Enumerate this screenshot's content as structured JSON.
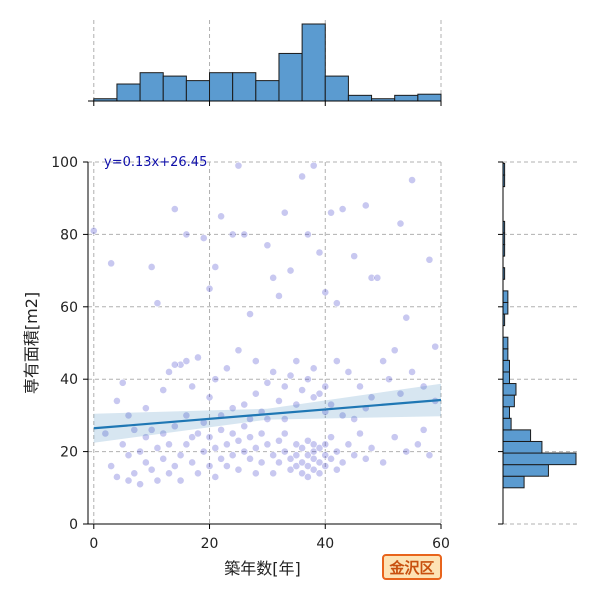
{
  "chart_data": {
    "type": "scatter",
    "xlabel": "築年数[年]",
    "ylabel": "専有面積[m2]",
    "xlim": [
      -1,
      60
    ],
    "ylim": [
      0,
      100
    ],
    "x_ticks": [
      0,
      20,
      40,
      60
    ],
    "y_ticks": [
      0,
      20,
      40,
      60,
      80,
      100
    ],
    "grid": true,
    "annotation": "y=0.13x+26.45",
    "regression": {
      "slope": 0.13,
      "intercept": 26.45
    },
    "badge": "金沢区",
    "colors": {
      "points": "#3a3ac8",
      "regression": "#1f77b4",
      "histogram": "#5b9bd0"
    },
    "points": [
      [
        0,
        81
      ],
      [
        3,
        72
      ],
      [
        10,
        71
      ],
      [
        11,
        61
      ],
      [
        5,
        39
      ],
      [
        12,
        37
      ],
      [
        14,
        87
      ],
      [
        16,
        80
      ],
      [
        19,
        79
      ],
      [
        20,
        65
      ],
      [
        21,
        71
      ],
      [
        22,
        85
      ],
      [
        24,
        80
      ],
      [
        25,
        99
      ],
      [
        26,
        80
      ],
      [
        27,
        58
      ],
      [
        28,
        45
      ],
      [
        30,
        77
      ],
      [
        31,
        68
      ],
      [
        32,
        63
      ],
      [
        33,
        86
      ],
      [
        34,
        70
      ],
      [
        36,
        96
      ],
      [
        37,
        80
      ],
      [
        38,
        99
      ],
      [
        39,
        75
      ],
      [
        40,
        64
      ],
      [
        41,
        86
      ],
      [
        42,
        61
      ],
      [
        43,
        87
      ],
      [
        45,
        74
      ],
      [
        47,
        88
      ],
      [
        48,
        68
      ],
      [
        49,
        68
      ],
      [
        52,
        48
      ],
      [
        53,
        83
      ],
      [
        54,
        57
      ],
      [
        55,
        95
      ],
      [
        58,
        73
      ],
      [
        59,
        49
      ],
      [
        2,
        25
      ],
      [
        3,
        16
      ],
      [
        4,
        13
      ],
      [
        5,
        22
      ],
      [
        6,
        19
      ],
      [
        6,
        12
      ],
      [
        7,
        26
      ],
      [
        7,
        14
      ],
      [
        8,
        20
      ],
      [
        8,
        11
      ],
      [
        9,
        17
      ],
      [
        9,
        24
      ],
      [
        10,
        15
      ],
      [
        10,
        26
      ],
      [
        11,
        12
      ],
      [
        11,
        21
      ],
      [
        12,
        18
      ],
      [
        12,
        25
      ],
      [
        13,
        14
      ],
      [
        13,
        22
      ],
      [
        14,
        16
      ],
      [
        14,
        27
      ],
      [
        15,
        19
      ],
      [
        15,
        12
      ],
      [
        16,
        22
      ],
      [
        16,
        30
      ],
      [
        17,
        17
      ],
      [
        17,
        24
      ],
      [
        18,
        14
      ],
      [
        18,
        25
      ],
      [
        19,
        20
      ],
      [
        19,
        28
      ],
      [
        20,
        16
      ],
      [
        20,
        24
      ],
      [
        21,
        21
      ],
      [
        21,
        13
      ],
      [
        22,
        26
      ],
      [
        22,
        18
      ],
      [
        23,
        22
      ],
      [
        23,
        16
      ],
      [
        24,
        25
      ],
      [
        24,
        19
      ],
      [
        25,
        23
      ],
      [
        25,
        15
      ],
      [
        26,
        20
      ],
      [
        26,
        27
      ],
      [
        27,
        18
      ],
      [
        27,
        24
      ],
      [
        28,
        21
      ],
      [
        28,
        14
      ],
      [
        29,
        25
      ],
      [
        29,
        17
      ],
      [
        30,
        22
      ],
      [
        30,
        29
      ],
      [
        31,
        19
      ],
      [
        31,
        14
      ],
      [
        32,
        23
      ],
      [
        32,
        17
      ],
      [
        33,
        20
      ],
      [
        33,
        25
      ],
      [
        34,
        18
      ],
      [
        34,
        15
      ],
      [
        35,
        22
      ],
      [
        35,
        19
      ],
      [
        35,
        16
      ],
      [
        36,
        21
      ],
      [
        36,
        17
      ],
      [
        36,
        14
      ],
      [
        37,
        23
      ],
      [
        37,
        19
      ],
      [
        37,
        16
      ],
      [
        37,
        13
      ],
      [
        38,
        22
      ],
      [
        38,
        18
      ],
      [
        38,
        15
      ],
      [
        38,
        20
      ],
      [
        39,
        17
      ],
      [
        39,
        21
      ],
      [
        39,
        14
      ],
      [
        40,
        19
      ],
      [
        40,
        16
      ],
      [
        40,
        22
      ],
      [
        41,
        18
      ],
      [
        41,
        24
      ],
      [
        42,
        15
      ],
      [
        42,
        20
      ],
      [
        43,
        17
      ],
      [
        44,
        22
      ],
      [
        45,
        19
      ],
      [
        46,
        25
      ],
      [
        47,
        18
      ],
      [
        48,
        21
      ],
      [
        50,
        17
      ],
      [
        52,
        24
      ],
      [
        54,
        20
      ],
      [
        56,
        22
      ],
      [
        57,
        26
      ],
      [
        58,
        19
      ],
      [
        4,
        34
      ],
      [
        6,
        30
      ],
      [
        9,
        32
      ],
      [
        13,
        42
      ],
      [
        15,
        44
      ],
      [
        17,
        38
      ],
      [
        18,
        46
      ],
      [
        20,
        35
      ],
      [
        21,
        40
      ],
      [
        23,
        43
      ],
      [
        25,
        48
      ],
      [
        26,
        33
      ],
      [
        28,
        36
      ],
      [
        30,
        39
      ],
      [
        31,
        42
      ],
      [
        32,
        34
      ],
      [
        33,
        38
      ],
      [
        34,
        41
      ],
      [
        35,
        45
      ],
      [
        36,
        37
      ],
      [
        37,
        40
      ],
      [
        38,
        43
      ],
      [
        39,
        36
      ],
      [
        40,
        38
      ],
      [
        41,
        33
      ],
      [
        42,
        45
      ],
      [
        44,
        42
      ],
      [
        46,
        38
      ],
      [
        48,
        35
      ],
      [
        50,
        45
      ],
      [
        51,
        40
      ],
      [
        53,
        36
      ],
      [
        55,
        42
      ],
      [
        57,
        38
      ],
      [
        59,
        34
      ],
      [
        14,
        44
      ],
      [
        16,
        45
      ],
      [
        22,
        30
      ],
      [
        24,
        32
      ],
      [
        27,
        29
      ],
      [
        29,
        31
      ],
      [
        33,
        29
      ],
      [
        35,
        33
      ],
      [
        38,
        35
      ],
      [
        40,
        31
      ],
      [
        43,
        30
      ],
      [
        45,
        29
      ],
      [
        47,
        32
      ]
    ],
    "hist_x": {
      "bin_edges": [
        0,
        4,
        8,
        12,
        16,
        20,
        24,
        28,
        32,
        36,
        40,
        44,
        48,
        52,
        56,
        60
      ],
      "counts": [
        2,
        15,
        25,
        22,
        18,
        25,
        25,
        18,
        42,
        68,
        22,
        5,
        2,
        5,
        6
      ]
    },
    "hist_y": {
      "bin_edges": [
        10,
        13.2,
        16.4,
        19.6,
        22.8,
        26,
        29.2,
        32.4,
        35.6,
        38.8,
        42,
        45.2,
        48.4,
        51.6,
        54.8,
        58,
        61.2,
        64.4,
        67.6,
        70.8,
        74,
        77.2,
        80.4,
        83.6,
        86.8,
        90,
        93.2,
        96.4,
        99.6
      ],
      "counts": [
        13,
        28,
        45,
        24,
        17,
        5,
        4,
        7,
        8,
        4,
        4,
        3,
        3,
        0,
        1,
        3,
        3,
        0,
        1,
        0,
        1,
        1,
        1,
        0,
        0,
        0,
        1,
        1
      ]
    }
  }
}
